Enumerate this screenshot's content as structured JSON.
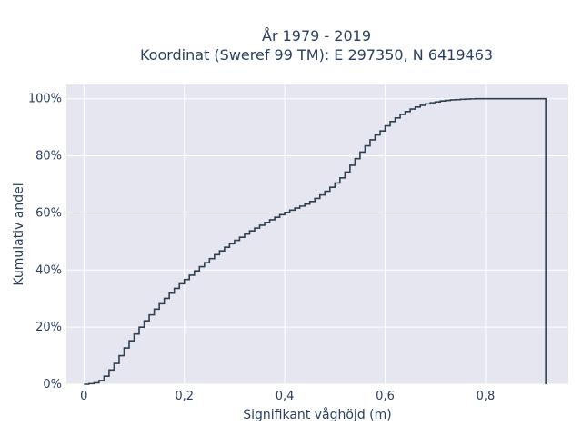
{
  "chart_data": {
    "type": "line",
    "title": [
      "År 1979 - 2019",
      "Koordinat (Sweref 99 TM): E 297350, N 6419463"
    ],
    "xlabel": "Signifikant våghöjd (m)",
    "ylabel": "Kumulativ andel",
    "xlim": [
      -0.035,
      0.965
    ],
    "ylim": [
      0,
      1.05
    ],
    "x_ticks": [
      0,
      0.2,
      0.4,
      0.6,
      0.8
    ],
    "x_tick_labels": [
      "0",
      "0,2",
      "0,4",
      "0,6",
      "0,8"
    ],
    "y_ticks": [
      0,
      0.2,
      0.4,
      0.6,
      0.8,
      1.0
    ],
    "y_tick_labels": [
      "0%",
      "20%",
      "40%",
      "60%",
      "80%",
      "100%"
    ],
    "grid": true,
    "series": [
      {
        "line_style": "step",
        "color": "#2e3f50",
        "x": [
          0.0,
          0.01,
          0.02,
          0.03,
          0.04,
          0.05,
          0.06,
          0.07,
          0.08,
          0.09,
          0.1,
          0.11,
          0.12,
          0.13,
          0.14,
          0.15,
          0.16,
          0.17,
          0.18,
          0.19,
          0.2,
          0.21,
          0.22,
          0.23,
          0.24,
          0.25,
          0.26,
          0.27,
          0.28,
          0.29,
          0.3,
          0.31,
          0.32,
          0.33,
          0.34,
          0.35,
          0.36,
          0.37,
          0.38,
          0.39,
          0.4,
          0.41,
          0.42,
          0.43,
          0.44,
          0.45,
          0.46,
          0.47,
          0.48,
          0.49,
          0.5,
          0.51,
          0.52,
          0.53,
          0.54,
          0.55,
          0.56,
          0.57,
          0.58,
          0.59,
          0.6,
          0.61,
          0.62,
          0.63,
          0.64,
          0.65,
          0.66,
          0.67,
          0.68,
          0.69,
          0.7,
          0.71,
          0.72,
          0.73,
          0.74,
          0.75,
          0.76,
          0.77,
          0.78,
          0.8,
          0.92
        ],
        "y": [
          0.0,
          0.002,
          0.005,
          0.013,
          0.028,
          0.05,
          0.073,
          0.1,
          0.127,
          0.152,
          0.176,
          0.2,
          0.222,
          0.243,
          0.263,
          0.282,
          0.301,
          0.319,
          0.336,
          0.352,
          0.367,
          0.382,
          0.397,
          0.412,
          0.426,
          0.44,
          0.454,
          0.467,
          0.48,
          0.492,
          0.504,
          0.515,
          0.526,
          0.537,
          0.547,
          0.557,
          0.567,
          0.576,
          0.585,
          0.594,
          0.602,
          0.61,
          0.617,
          0.624,
          0.631,
          0.64,
          0.651,
          0.663,
          0.676,
          0.69,
          0.705,
          0.723,
          0.743,
          0.767,
          0.79,
          0.813,
          0.835,
          0.856,
          0.873,
          0.887,
          0.905,
          0.92,
          0.933,
          0.945,
          0.955,
          0.964,
          0.971,
          0.977,
          0.982,
          0.986,
          0.989,
          0.992,
          0.994,
          0.996,
          0.997,
          0.998,
          0.999,
          0.9995,
          1.0,
          1.0,
          1.0
        ]
      }
    ]
  }
}
